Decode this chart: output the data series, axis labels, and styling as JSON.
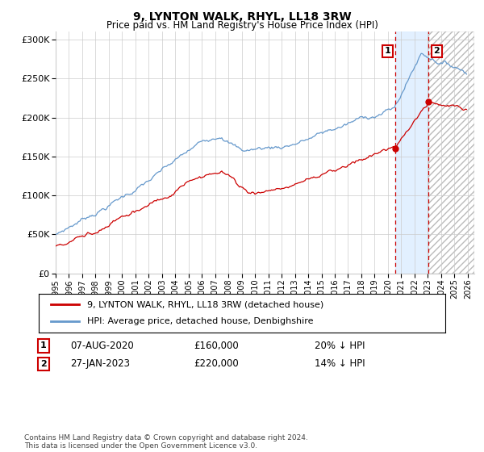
{
  "title": "9, LYNTON WALK, RHYL, LL18 3RW",
  "subtitle": "Price paid vs. HM Land Registry's House Price Index (HPI)",
  "ylim": [
    0,
    310000
  ],
  "yticks": [
    0,
    50000,
    100000,
    150000,
    200000,
    250000,
    300000
  ],
  "legend_label_red": "9, LYNTON WALK, RHYL, LL18 3RW (detached house)",
  "legend_label_blue": "HPI: Average price, detached house, Denbighshire",
  "marker1_date": "07-AUG-2020",
  "marker1_price": 160000,
  "marker1_label": "20% ↓ HPI",
  "marker1_year": 2020.58,
  "marker2_date": "27-JAN-2023",
  "marker2_price": 220000,
  "marker2_label": "14% ↓ HPI",
  "marker2_year": 2023.07,
  "footnote": "Contains HM Land Registry data © Crown copyright and database right 2024.\nThis data is licensed under the Open Government Licence v3.0.",
  "red_color": "#cc0000",
  "blue_color": "#6699cc",
  "grid_color": "#cccccc",
  "shaded_color": "#ddeeff",
  "bg_color": "#ffffff",
  "hatch_color": "#cccccc"
}
